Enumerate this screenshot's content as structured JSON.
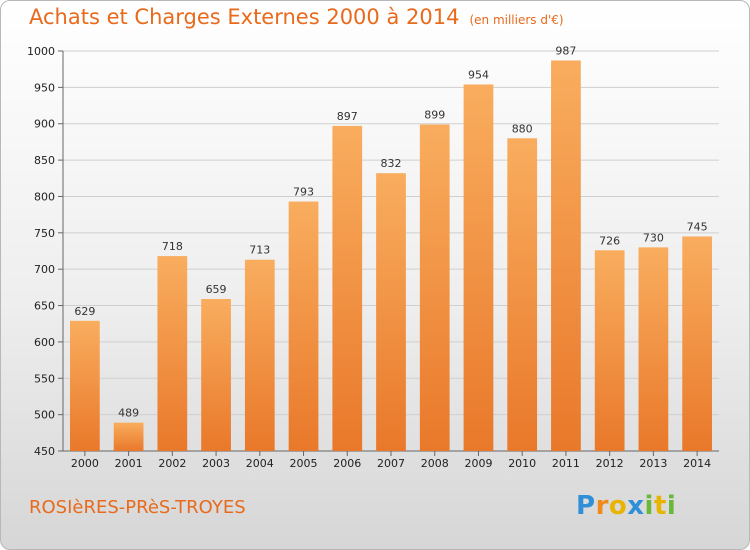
{
  "title": "Achats et Charges Externes 2000 à 2014",
  "unit_label": "(en milliers d'€)",
  "place": "ROSIèRES-PRèS-TROYES",
  "logo": {
    "letters": [
      "P",
      "r",
      "o",
      "x",
      "i",
      "t",
      "i"
    ],
    "colors": [
      "#2f8fd8",
      "#f08a1a",
      "#e8b400",
      "#2f8fd8",
      "#6ab83a",
      "#e8b400",
      "#6ab83a"
    ]
  },
  "colors": {
    "accent": "#e86a1c",
    "bar_light": "#f9ad5e",
    "bar_dark": "#e9782a"
  },
  "chart_data": {
    "type": "bar",
    "categories": [
      "2000",
      "2001",
      "2002",
      "2003",
      "2004",
      "2005",
      "2006",
      "2007",
      "2008",
      "2009",
      "2010",
      "2011",
      "2012",
      "2013",
      "2014"
    ],
    "values": [
      629,
      489,
      718,
      659,
      713,
      793,
      897,
      832,
      899,
      954,
      880,
      987,
      726,
      730,
      745
    ],
    "ylim": [
      450,
      1000
    ],
    "yticks": [
      450,
      500,
      550,
      600,
      650,
      700,
      750,
      800,
      850,
      900,
      950,
      1000
    ],
    "grid": true,
    "xlabel": "",
    "ylabel": ""
  }
}
